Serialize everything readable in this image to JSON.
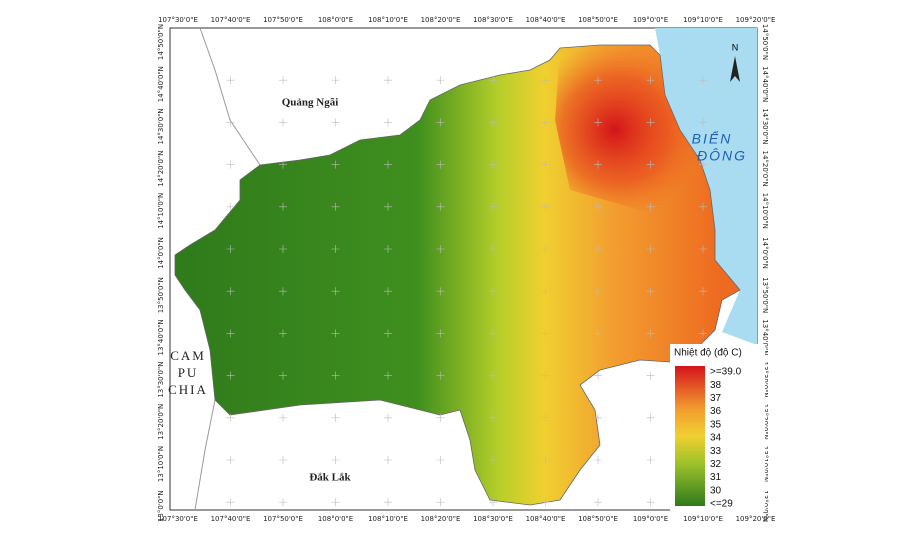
{
  "map": {
    "top_labels": [
      "107°30'0\"E",
      "107°40'0\"E",
      "107°50'0\"E",
      "108°0'0\"E",
      "108°10'0\"E",
      "108°20'0\"E",
      "108°30'0\"E",
      "108°40'0\"E",
      "108°50'0\"E",
      "109°0'0\"E",
      "109°10'0\"E",
      "109°20'0\"E"
    ],
    "bottom_labels": [
      "107°30'0\"E",
      "107°40'0\"E",
      "107°50'0\"E",
      "108°0'0\"E",
      "108°10'0\"E",
      "108°20'0\"E",
      "108°30'0\"E",
      "108°40'0\"E",
      "108°50'0\"E",
      "109°0'0\"E",
      "109°10'0\"E",
      "109°20'0\"E"
    ],
    "left_labels": [
      "14°50'0\"N",
      "14°40'0\"N",
      "14°30'0\"N",
      "14°20'0\"N",
      "14°10'0\"N",
      "14°0'0\"N",
      "13°50'0\"N",
      "13°40'0\"N",
      "13°30'0\"N",
      "13°20'0\"N",
      "13°10'0\"N",
      "13°0'0\"N"
    ],
    "right_labels": [
      "14°50'0\"N",
      "14°40'0\"N",
      "14°30'0\"N",
      "14°20'0\"N",
      "14°10'0\"N",
      "14°0'0\"N",
      "13°50'0\"N",
      "13°40'0\"N",
      "13°30'0\"N",
      "13°20'0\"N",
      "13°10'0\"N",
      "13°0'0\"N"
    ],
    "regions": {
      "north": "Quảng Ngãi",
      "sea": [
        "BIỂN",
        "ĐÔNG"
      ],
      "west": [
        "CAM",
        "PU",
        "CHIA"
      ],
      "south": "Đắk Lắk"
    },
    "north_arrow": "N",
    "legend": {
      "title": "Nhiệt độ (độ C)",
      "labels": [
        ">=39.0",
        "38",
        "37",
        "36",
        "35",
        "34",
        "33",
        "32",
        "31",
        "30",
        "<=29"
      ]
    }
  }
}
